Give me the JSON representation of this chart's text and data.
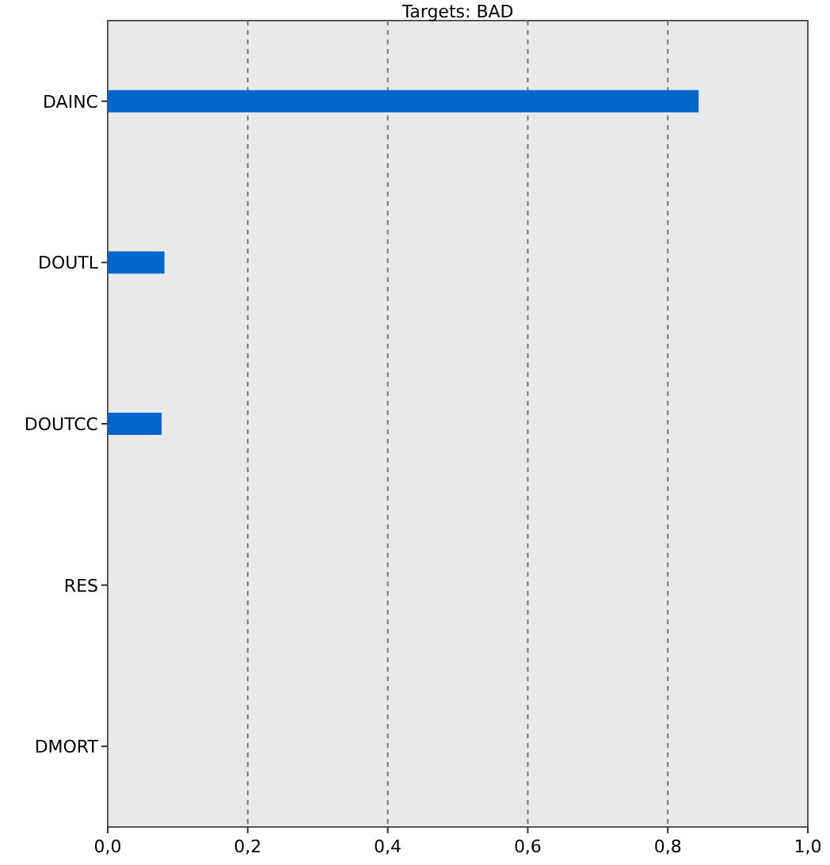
{
  "chart_data": {
    "type": "bar",
    "title": "Targets: BAD",
    "orientation": "horizontal",
    "categories": [
      "DAINC",
      "DOUTL",
      "DOUTCC",
      "RES",
      "DMORT"
    ],
    "values": [
      0.844,
      0.081,
      0.077,
      0,
      0
    ],
    "color": "#0066cc",
    "xlim": [
      0,
      1
    ],
    "xticks": [
      {
        "value": 0,
        "label": "0,0"
      },
      {
        "value": 0.2,
        "label": "0,2"
      },
      {
        "value": 0.4,
        "label": "0,4"
      },
      {
        "value": 0.6,
        "label": "0,6"
      },
      {
        "value": 0.8,
        "label": "0,8"
      },
      {
        "value": 1,
        "label": "1,0"
      }
    ],
    "grid": "x"
  }
}
